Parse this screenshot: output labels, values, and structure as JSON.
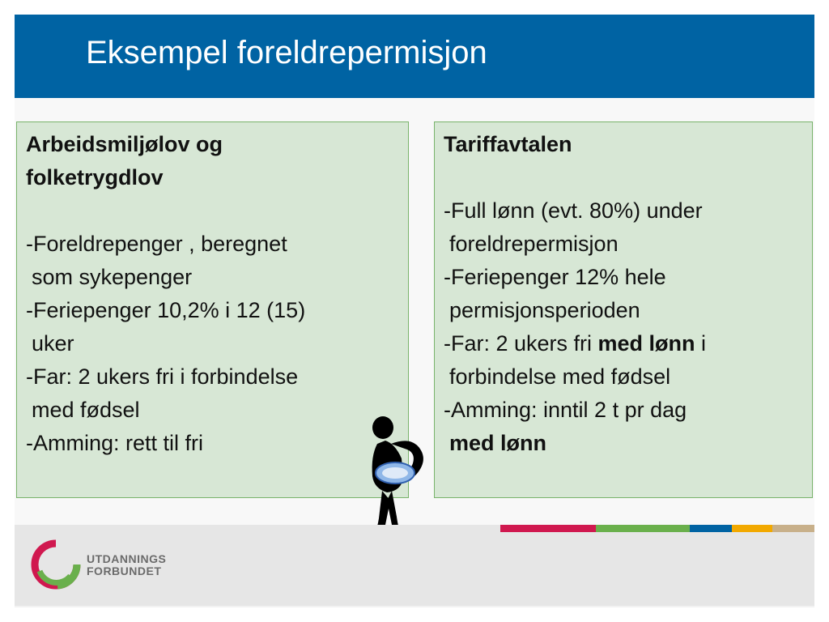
{
  "slide": {
    "title": "Eksempel foreldrepermisjon"
  },
  "left_box": {
    "heading_line1": "Arbeidsmiljølov og",
    "heading_line2": "folketrygdlov",
    "items": [
      {
        "first": "-Foreldrepenger , beregnet",
        "cont": "som sykepenger"
      },
      {
        "first": "-Feriepenger 10,2% i 12 (15)",
        "cont": "uker"
      },
      {
        "first": "-Far: 2 ukers fri i forbindelse",
        "cont": "med fødsel"
      },
      {
        "first": "-Amming: rett til fri"
      }
    ]
  },
  "right_box": {
    "heading": "Tariffavtalen",
    "item1_first": "-Full lønn  (evt. 80%) under",
    "item1_cont": "foreldrepermisjon",
    "item2_first": "-Feriepenger 12% hele",
    "item2_cont": "permisjonsperioden",
    "item3_prefix": "-Far: 2 ukers fri ",
    "item3_bold": "med lønn",
    "item3_suffix": " i",
    "item3_cont": "forbindelse med fødsel",
    "item4_first": "-Amming: inntil 2 t pr dag",
    "item4_cont_bold": "med lønn"
  },
  "logo": {
    "line1": "UTDANNINGS",
    "line2": "FORBUNDET"
  },
  "colors": {
    "title_bar": "#0063a3",
    "box_fill": "#d7e7d5",
    "box_border": "#79b36b",
    "stripe_red": "#d0184f",
    "stripe_green": "#6ab04c",
    "stripe_blue": "#0063a3",
    "stripe_yellow": "#f2a900",
    "stripe_tan": "#c8b08a"
  },
  "icons": {
    "logo": "utdanningsforbundet-logo-icon",
    "figure": "parent-holding-baby-icon"
  }
}
